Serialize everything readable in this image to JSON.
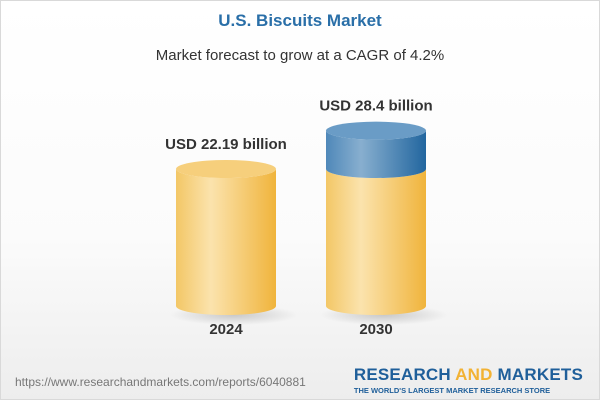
{
  "chart_data": {
    "type": "bar",
    "style": "3d-cylinder",
    "title": "U.S. Biscuits Market",
    "subtitle": "Market forecast to grow at a CAGR of 4.2%",
    "categories": [
      "2024",
      "2030"
    ],
    "values": [
      22.19,
      28.4
    ],
    "unit": "USD billion",
    "data_labels": [
      "USD 22.19 billion",
      "USD 28.4 billion"
    ],
    "colors": {
      "base": "#f2c062",
      "growth": "#3f7eb3",
      "title": "#2a6fa8"
    }
  },
  "footer": {
    "url": "https://www.researchandmarkets.com/reports/6040881",
    "logo_part1": "RESEARCH ",
    "logo_part2": "AND",
    "logo_part3": " MARKETS",
    "logo_tagline": "THE WORLD'S LARGEST MARKET RESEARCH STORE"
  }
}
